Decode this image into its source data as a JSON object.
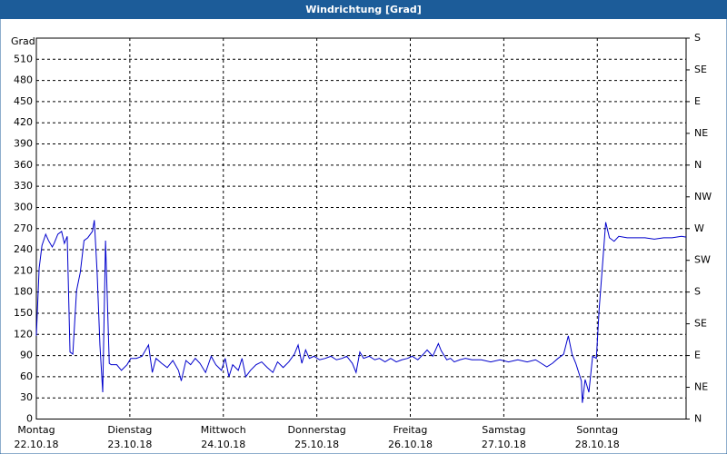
{
  "chart_data": {
    "type": "line",
    "title": "Windrichtung [Grad]",
    "y_label": "Grad",
    "x": [
      0,
      0.03,
      0.06,
      0.1,
      0.13,
      0.17,
      0.19,
      0.23,
      0.27,
      0.3,
      0.33,
      0.36,
      0.39,
      0.43,
      0.47,
      0.51,
      0.55,
      0.6,
      0.62,
      0.65,
      0.68,
      0.71,
      0.74,
      0.78,
      0.8,
      0.86,
      0.91,
      0.97,
      1.01,
      1.07,
      1.13,
      1.2,
      1.24,
      1.28,
      1.34,
      1.4,
      1.46,
      1.52,
      1.55,
      1.6,
      1.65,
      1.7,
      1.75,
      1.81,
      1.87,
      1.92,
      1.98,
      2.02,
      2.06,
      2.1,
      2.16,
      2.2,
      2.24,
      2.29,
      2.35,
      2.41,
      2.47,
      2.53,
      2.58,
      2.64,
      2.7,
      2.76,
      2.8,
      2.84,
      2.88,
      2.92,
      2.97,
      3.03,
      3.09,
      3.15,
      3.21,
      3.27,
      3.32,
      3.38,
      3.42,
      3.46,
      3.5,
      3.56,
      3.62,
      3.67,
      3.73,
      3.79,
      3.85,
      3.91,
      3.97,
      4.02,
      4.08,
      4.14,
      4.18,
      4.24,
      4.3,
      4.33,
      4.39,
      4.43,
      4.47,
      4.53,
      4.59,
      4.66,
      4.76,
      4.86,
      4.96,
      5.05,
      5.15,
      5.25,
      5.34,
      5.4,
      5.46,
      5.52,
      5.58,
      5.64,
      5.69,
      5.73,
      5.77,
      5.83,
      5.84,
      5.87,
      5.91,
      5.95,
      5.99,
      6.02,
      6.05,
      6.09,
      6.13,
      6.18,
      6.23,
      6.32,
      6.41,
      6.51,
      6.61,
      6.71,
      6.8,
      6.9,
      6.95
    ],
    "series": [
      {
        "color": "#0000cc",
        "values": [
          118,
          214,
          246,
          262,
          253,
          244,
          249,
          262,
          266,
          249,
          259,
          95,
          92,
          182,
          208,
          253,
          257,
          266,
          282,
          208,
          105,
          38,
          253,
          79,
          77,
          77,
          69,
          77,
          86,
          86,
          89,
          105,
          66,
          86,
          79,
          73,
          83,
          69,
          54,
          83,
          77,
          86,
          79,
          66,
          89,
          77,
          69,
          86,
          60,
          77,
          69,
          86,
          60,
          69,
          77,
          81,
          73,
          66,
          81,
          73,
          81,
          92,
          105,
          79,
          98,
          86,
          89,
          84,
          86,
          89,
          84,
          86,
          89,
          79,
          66,
          95,
          86,
          89,
          84,
          86,
          81,
          86,
          81,
          84,
          86,
          89,
          84,
          92,
          98,
          89,
          107,
          97,
          84,
          86,
          81,
          84,
          86,
          84,
          84,
          81,
          84,
          81,
          84,
          81,
          84,
          79,
          74,
          79,
          86,
          92,
          118,
          92,
          79,
          54,
          23,
          56,
          38,
          89,
          86,
          156,
          208,
          279,
          257,
          252,
          259,
          257,
          257,
          257,
          255,
          257,
          257,
          259,
          258
        ]
      }
    ],
    "xlim": [
      0,
      6.95
    ],
    "xticks": [
      {
        "value": 0,
        "label": [
          "Montag",
          "22.10.18"
        ]
      },
      {
        "value": 1,
        "label": [
          "Dienstag",
          "23.10.18"
        ]
      },
      {
        "value": 2,
        "label": [
          "Mittwoch",
          "24.10.18"
        ]
      },
      {
        "value": 3,
        "label": [
          "Donnerstag",
          "25.10.18"
        ]
      },
      {
        "value": 4,
        "label": [
          "Freitag",
          "26.10.18"
        ]
      },
      {
        "value": 5,
        "label": [
          "Samstag",
          "27.10.18"
        ]
      },
      {
        "value": 6,
        "label": [
          "Sonntag",
          "28.10.18"
        ]
      }
    ],
    "ylim": [
      0,
      540
    ],
    "yticks": [
      0,
      30,
      60,
      90,
      120,
      150,
      180,
      210,
      240,
      270,
      300,
      330,
      360,
      390,
      420,
      450,
      480,
      510
    ],
    "y2lim": [
      0,
      540
    ],
    "y2ticks": [
      {
        "value": 0,
        "label": "N"
      },
      {
        "value": 45,
        "label": "NE"
      },
      {
        "value": 90,
        "label": "E"
      },
      {
        "value": 135,
        "label": "SE"
      },
      {
        "value": 180,
        "label": "S"
      },
      {
        "value": 225,
        "label": "SW"
      },
      {
        "value": 270,
        "label": "W"
      },
      {
        "value": 315,
        "label": "NW"
      },
      {
        "value": 360,
        "label": "N"
      },
      {
        "value": 405,
        "label": "NE"
      },
      {
        "value": 450,
        "label": "E"
      },
      {
        "value": 495,
        "label": "SE"
      },
      {
        "value": 540,
        "label": "S"
      }
    ],
    "grid": true
  }
}
